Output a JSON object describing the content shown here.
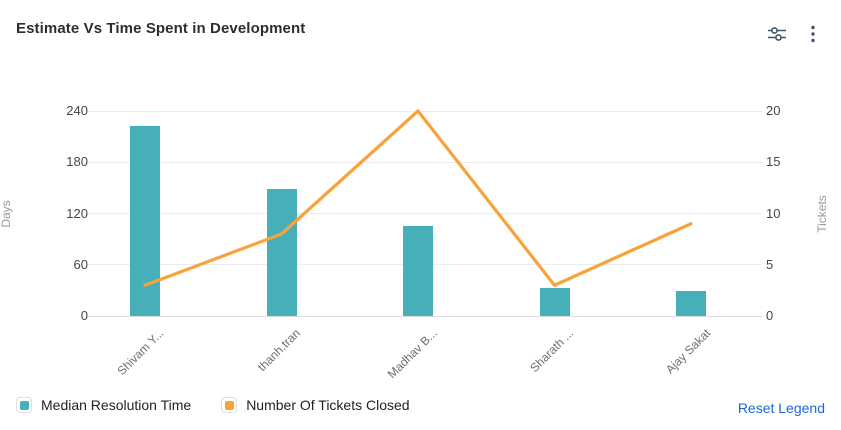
{
  "header": {
    "title": "Estimate Vs Time Spent in Development",
    "settings_icon": "horizontal-sliders-icon",
    "menu_icon": "kebab-menu-icon",
    "icon_color": "#44546f"
  },
  "chart_data": {
    "type": "combo-bar-line",
    "categories": [
      "Shivam Y...",
      "thanh.tran",
      "Madhav B...",
      "Sharath ...",
      "Ajay Sakat"
    ],
    "series": [
      {
        "name": "Median Resolution Time",
        "type": "bar",
        "axis": "left",
        "color": "#46afba",
        "values": [
          223,
          149,
          105,
          33,
          29
        ]
      },
      {
        "name": "Number Of Tickets Closed",
        "type": "line",
        "axis": "right",
        "color": "#f9a13b",
        "values": [
          3,
          8,
          20,
          3,
          9
        ]
      }
    ],
    "left_axis": {
      "label": "Days",
      "min": 0,
      "max": 240,
      "ticks": [
        0,
        60,
        120,
        180,
        240
      ]
    },
    "right_axis": {
      "label": "Tickets",
      "min": 0,
      "max": 20,
      "ticks": [
        0,
        5,
        10,
        15,
        20
      ]
    },
    "grid": true,
    "legend_position": "bottom",
    "x_label_rotation": -45
  },
  "legend": {
    "items": [
      {
        "label": "Median Resolution Time",
        "color": "#46afba"
      },
      {
        "label": "Number Of Tickets Closed",
        "color": "#f9a13b"
      }
    ],
    "reset_label": "Reset Legend",
    "reset_color": "#1868db"
  }
}
